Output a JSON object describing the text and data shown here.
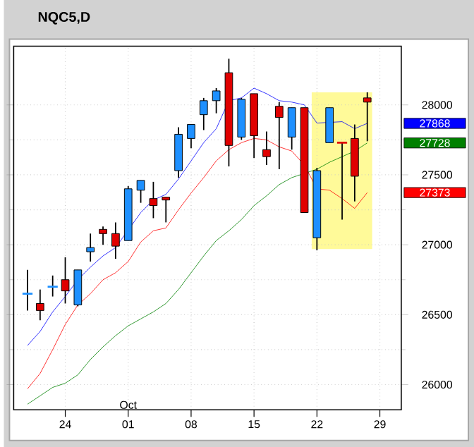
{
  "chart_data": {
    "type": "candlestick",
    "title": "NQC5,D",
    "categories": [
      null,
      null,
      null,
      "24",
      null,
      null,
      null,
      null,
      "01",
      null,
      null,
      null,
      null,
      "08",
      null,
      null,
      null,
      null,
      "15",
      null,
      null,
      null,
      null,
      "22",
      null,
      null,
      null,
      null,
      "29"
    ],
    "ohlc": [
      [
        26650,
        26820,
        26530,
        26650
      ],
      [
        26580,
        26680,
        26460,
        26530
      ],
      [
        26700,
        26780,
        26630,
        26700
      ],
      [
        26750,
        26910,
        26580,
        26670
      ],
      [
        26570,
        26820,
        26560,
        26820
      ],
      [
        26950,
        27080,
        26880,
        26980
      ],
      [
        27110,
        27130,
        27000,
        27080
      ],
      [
        27080,
        27160,
        26900,
        26990
      ],
      [
        27030,
        27420,
        27030,
        27400
      ],
      [
        27390,
        27460,
        27300,
        27460
      ],
      [
        27330,
        27450,
        27190,
        27280
      ],
      [
        27340,
        27340,
        27160,
        27320
      ],
      [
        27530,
        27840,
        27480,
        27790
      ],
      [
        27760,
        27860,
        27690,
        27860
      ],
      [
        27930,
        28050,
        27820,
        28030
      ],
      [
        28030,
        28120,
        27940,
        28100
      ],
      [
        28230,
        28330,
        27560,
        27710
      ],
      [
        27770,
        28050,
        27750,
        28040
      ],
      [
        28080,
        28080,
        27620,
        27780
      ],
      [
        27680,
        27810,
        27570,
        27630
      ],
      [
        27990,
        28020,
        27540,
        27910
      ],
      [
        27770,
        27980,
        27680,
        27980
      ],
      [
        27980,
        27980,
        27230,
        27230
      ],
      [
        27050,
        27550,
        26960,
        27530
      ],
      [
        27730,
        27980,
        27730,
        27980
      ],
      [
        27730,
        27730,
        27180,
        27730
      ],
      [
        27760,
        27860,
        27310,
        27490
      ],
      [
        28050,
        28090,
        27740,
        28020
      ],
      null
    ],
    "colors": [
      "#1e90ff",
      "#e00000",
      "#1e90ff",
      "#e00000",
      "#1e90ff",
      "#1e90ff",
      "#e00000",
      "#e00000",
      "#1e90ff",
      "#1e90ff",
      "#e00000",
      "#e00000",
      "#1e90ff",
      "#1e90ff",
      "#1e90ff",
      "#1e90ff",
      "#e00000",
      "#1e90ff",
      "#e00000",
      "#e00000",
      "#e00000",
      "#1e90ff",
      "#e00000",
      "#1e90ff",
      "#1e90ff",
      "#e00000",
      "#e00000",
      "#e00000",
      null
    ],
    "series": [
      {
        "type": "line",
        "color": "#0000ff",
        "values": [
          26280,
          26380,
          26520,
          26630,
          26750,
          26840,
          26920,
          26980,
          null,
          27230,
          27320,
          27360,
          27470,
          27600,
          27730,
          27830,
          28030,
          28050,
          28120,
          28080,
          28030,
          28020,
          28000,
          27870,
          null,
          27880,
          27830,
          27868,
          null
        ]
      },
      {
        "type": "line",
        "color": "#008000",
        "values": [
          25860,
          25920,
          25980,
          26010,
          26070,
          26180,
          26270,
          26350,
          26420,
          26470,
          26520,
          26580,
          26680,
          26800,
          26920,
          27030,
          27100,
          27180,
          27280,
          27350,
          27430,
          27480,
          27510,
          27540,
          27590,
          27630,
          27670,
          27728,
          null
        ]
      },
      {
        "type": "line",
        "color": "#ff0000",
        "values": [
          25970,
          26080,
          26250,
          26430,
          26570,
          26650,
          26750,
          26800,
          26880,
          27020,
          27100,
          27120,
          27250,
          27370,
          27480,
          27600,
          27680,
          27730,
          27760,
          27750,
          27700,
          27670,
          27570,
          27400,
          27390,
          27330,
          27260,
          27373,
          null
        ]
      }
    ],
    "ylim": [
      25820,
      28420
    ],
    "yticks": [
      26000,
      26500,
      27000,
      27500,
      28000
    ],
    "grid": true,
    "marker": "none",
    "annotations": [
      "Oct",
      "27868",
      "27728",
      "27373"
    ]
  }
}
